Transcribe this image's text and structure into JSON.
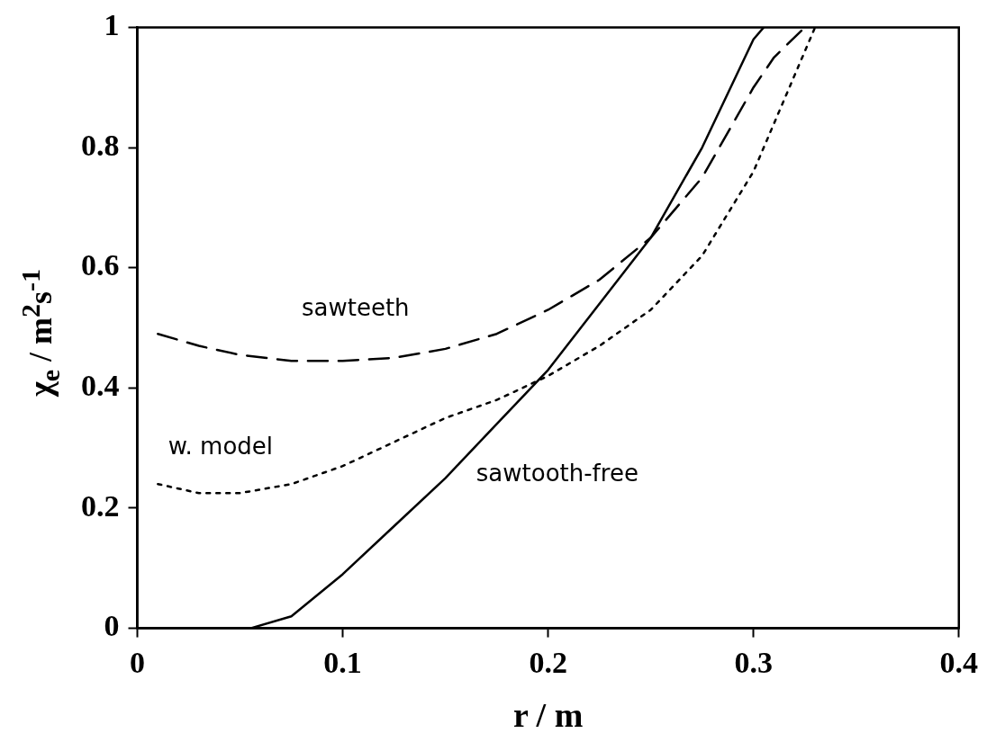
{
  "chart_data": {
    "type": "line",
    "xlabel": "r / m",
    "ylabel": "χ$_{e}$ / m$^{2}$s$^{-1}$",
    "xlim": [
      0,
      0.4
    ],
    "xticks": [
      0,
      0.1,
      0.2,
      0.3,
      0.4
    ],
    "ylim": [
      0,
      1
    ],
    "yticks": [
      0,
      0.2,
      0.4,
      0.6,
      0.8,
      1
    ],
    "grid": false,
    "legend": false,
    "marker": "none",
    "series": [
      {
        "name": "sawteeth",
        "color": "#000000",
        "line_style": "dashed",
        "x": [
          0.01,
          0.03,
          0.05,
          0.075,
          0.1,
          0.125,
          0.15,
          0.175,
          0.2,
          0.225,
          0.25,
          0.275,
          0.3,
          0.31,
          0.325
        ],
        "values": [
          0.49,
          0.47,
          0.455,
          0.445,
          0.445,
          0.45,
          0.465,
          0.49,
          0.53,
          0.58,
          0.65,
          0.75,
          0.9,
          0.95,
          1
        ]
      },
      {
        "name": "w. model",
        "color": "#000000",
        "line_style": "dotted",
        "x": [
          0.01,
          0.03,
          0.05,
          0.075,
          0.1,
          0.125,
          0.15,
          0.175,
          0.2,
          0.225,
          0.25,
          0.275,
          0.3,
          0.32,
          0.33
        ],
        "values": [
          0.24,
          0.225,
          0.225,
          0.24,
          0.27,
          0.31,
          0.35,
          0.38,
          0.42,
          0.47,
          0.53,
          0.62,
          0.76,
          0.92,
          1
        ]
      },
      {
        "name": "sawtooth-free",
        "color": "#000000",
        "line_style": "solid",
        "x": [
          0.055,
          0.075,
          0.1,
          0.125,
          0.15,
          0.175,
          0.2,
          0.225,
          0.25,
          0.275,
          0.3,
          0.305
        ],
        "values": [
          0,
          0.02,
          0.09,
          0.17,
          0.25,
          0.34,
          0.43,
          0.54,
          0.65,
          0.8,
          0.98,
          1
        ]
      }
    ]
  }
}
